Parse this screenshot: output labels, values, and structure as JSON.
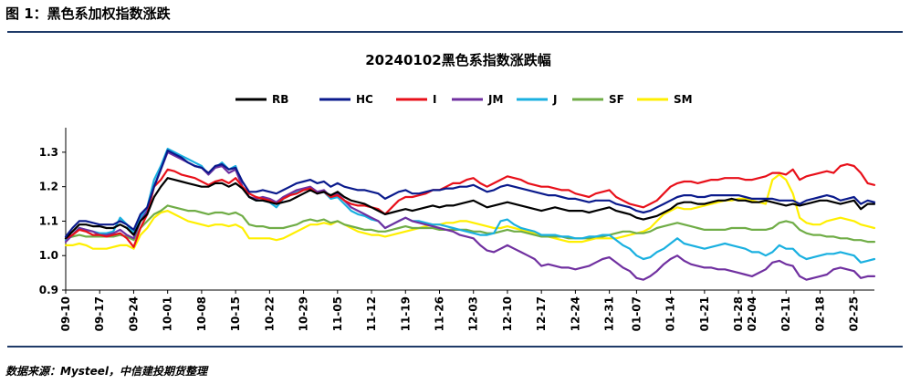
{
  "figure_title": "图 1：黑色系加权指数涨跌",
  "source_note": "数据来源：Mysteel，中信建投期货整理",
  "chart_data": {
    "type": "line",
    "title": "20240102黑色系指数涨跌幅",
    "xlabel": "",
    "ylabel": "",
    "ylim": [
      0.9,
      1.35
    ],
    "yticks": [
      "0.9",
      "1.0",
      "1.1",
      "1.2",
      "1.3"
    ],
    "grid": false,
    "legend_position": "top",
    "x": [
      "09-10",
      "09-11",
      "09-12",
      "09-13",
      "09-14",
      "09-17",
      "09-18",
      "09-19",
      "09-20",
      "09-21",
      "09-24",
      "09-25",
      "09-26",
      "09-27",
      "09-28",
      "10-01",
      "10-02",
      "10-03",
      "10-04",
      "10-05",
      "10-08",
      "10-09",
      "10-10",
      "10-11",
      "10-12",
      "10-15",
      "10-16",
      "10-17",
      "10-18",
      "10-19",
      "10-22",
      "10-23",
      "10-24",
      "10-25",
      "10-26",
      "10-29",
      "10-30",
      "10-31",
      "11-01",
      "11-02",
      "11-05",
      "11-06",
      "11-07",
      "11-08",
      "11-09",
      "11-12",
      "11-13",
      "11-14",
      "11-15",
      "11-16",
      "11-19",
      "11-20",
      "11-21",
      "11-22",
      "11-23",
      "11-26",
      "11-27",
      "11-28",
      "11-29",
      "11-30",
      "12-03",
      "12-04",
      "12-05",
      "12-06",
      "12-07",
      "12-10",
      "12-11",
      "12-12",
      "12-13",
      "12-14",
      "12-17",
      "12-18",
      "12-19",
      "12-20",
      "12-21",
      "12-24",
      "12-25",
      "12-26",
      "12-27",
      "12-28",
      "12-31",
      "01-02",
      "01-03",
      "01-06",
      "01-07",
      "01-08",
      "01-09",
      "01-10",
      "01-13",
      "01-14",
      "01-15",
      "01-16",
      "01-17",
      "01-20",
      "01-21",
      "01-22",
      "01-23",
      "01-24",
      "01-27",
      "01-28",
      "02-03",
      "02-04",
      "02-05",
      "02-06",
      "02-07",
      "02-10",
      "02-11",
      "02-12",
      "02-13",
      "02-14",
      "02-17",
      "02-18",
      "02-19",
      "02-20",
      "02-21",
      "02-24",
      "02-25",
      "02-26",
      "02-27",
      "02-28"
    ],
    "xtick_labels": [
      "09-10",
      "09-17",
      "09-24",
      "10-01",
      "10-08",
      "10-15",
      "10-22",
      "10-29",
      "11-05",
      "11-12",
      "11-19",
      "11-26",
      "12-03",
      "12-10",
      "12-17",
      "12-24",
      "12-31",
      "01-07",
      "01-14",
      "01-21",
      "01-28",
      "02-04",
      "02-11",
      "02-18",
      "02-25"
    ],
    "series": [
      {
        "name": "RB",
        "color": "#000000",
        "values": [
          1.05,
          1.07,
          1.09,
          1.09,
          1.085,
          1.085,
          1.08,
          1.08,
          1.09,
          1.08,
          1.06,
          1.1,
          1.12,
          1.17,
          1.2,
          1.225,
          1.22,
          1.215,
          1.21,
          1.205,
          1.2,
          1.2,
          1.21,
          1.21,
          1.2,
          1.21,
          1.195,
          1.17,
          1.16,
          1.16,
          1.155,
          1.15,
          1.155,
          1.16,
          1.17,
          1.18,
          1.19,
          1.18,
          1.185,
          1.175,
          1.185,
          1.17,
          1.16,
          1.155,
          1.15,
          1.14,
          1.13,
          1.12,
          1.125,
          1.13,
          1.135,
          1.13,
          1.135,
          1.14,
          1.145,
          1.14,
          1.145,
          1.145,
          1.15,
          1.155,
          1.16,
          1.15,
          1.14,
          1.145,
          1.15,
          1.155,
          1.15,
          1.145,
          1.14,
          1.135,
          1.13,
          1.135,
          1.14,
          1.135,
          1.13,
          1.13,
          1.13,
          1.125,
          1.13,
          1.135,
          1.14,
          1.13,
          1.125,
          1.12,
          1.11,
          1.105,
          1.11,
          1.115,
          1.125,
          1.135,
          1.15,
          1.155,
          1.155,
          1.15,
          1.15,
          1.155,
          1.16,
          1.16,
          1.165,
          1.16,
          1.16,
          1.155,
          1.155,
          1.16,
          1.155,
          1.15,
          1.145,
          1.15,
          1.145,
          1.15,
          1.155,
          1.16,
          1.16,
          1.155,
          1.15,
          1.155,
          1.16,
          1.135,
          1.15,
          1.15
        ]
      },
      {
        "name": "HC",
        "color": "#0a1a8c",
        "values": [
          1.055,
          1.08,
          1.1,
          1.1,
          1.095,
          1.09,
          1.09,
          1.09,
          1.1,
          1.09,
          1.075,
          1.12,
          1.14,
          1.2,
          1.25,
          1.305,
          1.295,
          1.285,
          1.27,
          1.26,
          1.255,
          1.24,
          1.26,
          1.265,
          1.25,
          1.255,
          1.215,
          1.185,
          1.185,
          1.19,
          1.185,
          1.18,
          1.19,
          1.2,
          1.21,
          1.215,
          1.22,
          1.21,
          1.215,
          1.2,
          1.21,
          1.2,
          1.195,
          1.19,
          1.19,
          1.185,
          1.18,
          1.165,
          1.175,
          1.185,
          1.19,
          1.18,
          1.18,
          1.185,
          1.19,
          1.19,
          1.195,
          1.195,
          1.2,
          1.2,
          1.205,
          1.195,
          1.185,
          1.19,
          1.2,
          1.205,
          1.2,
          1.195,
          1.19,
          1.185,
          1.18,
          1.175,
          1.175,
          1.17,
          1.165,
          1.165,
          1.16,
          1.155,
          1.16,
          1.16,
          1.16,
          1.15,
          1.145,
          1.14,
          1.13,
          1.125,
          1.13,
          1.14,
          1.15,
          1.16,
          1.17,
          1.175,
          1.175,
          1.17,
          1.17,
          1.175,
          1.175,
          1.175,
          1.175,
          1.175,
          1.17,
          1.165,
          1.165,
          1.165,
          1.165,
          1.16,
          1.16,
          1.16,
          1.15,
          1.16,
          1.165,
          1.17,
          1.175,
          1.17,
          1.16,
          1.165,
          1.17,
          1.15,
          1.16,
          1.155
        ]
      },
      {
        "name": "I",
        "color": "#e8101a",
        "values": [
          1.05,
          1.06,
          1.075,
          1.07,
          1.06,
          1.06,
          1.055,
          1.06,
          1.065,
          1.05,
          1.025,
          1.08,
          1.12,
          1.2,
          1.22,
          1.25,
          1.245,
          1.235,
          1.23,
          1.225,
          1.215,
          1.205,
          1.215,
          1.22,
          1.21,
          1.225,
          1.2,
          1.18,
          1.17,
          1.165,
          1.16,
          1.15,
          1.165,
          1.175,
          1.18,
          1.19,
          1.195,
          1.18,
          1.185,
          1.17,
          1.175,
          1.16,
          1.15,
          1.145,
          1.145,
          1.14,
          1.135,
          1.12,
          1.14,
          1.16,
          1.17,
          1.17,
          1.175,
          1.18,
          1.19,
          1.19,
          1.2,
          1.21,
          1.21,
          1.22,
          1.225,
          1.21,
          1.2,
          1.21,
          1.22,
          1.23,
          1.225,
          1.22,
          1.21,
          1.205,
          1.2,
          1.2,
          1.195,
          1.19,
          1.19,
          1.18,
          1.175,
          1.17,
          1.18,
          1.185,
          1.19,
          1.17,
          1.16,
          1.15,
          1.145,
          1.14,
          1.15,
          1.16,
          1.18,
          1.2,
          1.21,
          1.215,
          1.215,
          1.21,
          1.215,
          1.22,
          1.22,
          1.225,
          1.225,
          1.225,
          1.22,
          1.22,
          1.225,
          1.23,
          1.24,
          1.24,
          1.235,
          1.25,
          1.22,
          1.23,
          1.235,
          1.24,
          1.245,
          1.24,
          1.26,
          1.265,
          1.26,
          1.24,
          1.21,
          1.205
        ]
      },
      {
        "name": "JM",
        "color": "#7030a0",
        "values": [
          1.04,
          1.06,
          1.08,
          1.075,
          1.07,
          1.06,
          1.06,
          1.065,
          1.075,
          1.06,
          1.05,
          1.1,
          1.13,
          1.2,
          1.25,
          1.3,
          1.29,
          1.28,
          1.27,
          1.26,
          1.255,
          1.235,
          1.255,
          1.26,
          1.24,
          1.25,
          1.2,
          1.17,
          1.165,
          1.17,
          1.165,
          1.155,
          1.17,
          1.18,
          1.19,
          1.195,
          1.2,
          1.185,
          1.19,
          1.17,
          1.18,
          1.16,
          1.14,
          1.13,
          1.12,
          1.11,
          1.1,
          1.08,
          1.09,
          1.1,
          1.11,
          1.1,
          1.095,
          1.09,
          1.085,
          1.08,
          1.075,
          1.07,
          1.06,
          1.055,
          1.05,
          1.03,
          1.015,
          1.01,
          1.02,
          1.03,
          1.02,
          1.01,
          1.0,
          0.99,
          0.97,
          0.975,
          0.97,
          0.965,
          0.965,
          0.96,
          0.965,
          0.97,
          0.98,
          0.99,
          0.995,
          0.98,
          0.965,
          0.955,
          0.935,
          0.93,
          0.94,
          0.955,
          0.975,
          0.99,
          1.0,
          0.985,
          0.975,
          0.97,
          0.965,
          0.965,
          0.96,
          0.96,
          0.955,
          0.95,
          0.945,
          0.94,
          0.95,
          0.96,
          0.98,
          0.985,
          0.975,
          0.97,
          0.94,
          0.93,
          0.935,
          0.94,
          0.945,
          0.96,
          0.965,
          0.96,
          0.955,
          0.935,
          0.94,
          0.94
        ]
      },
      {
        "name": "J",
        "color": "#1ab0e0",
        "values": [
          1.045,
          1.06,
          1.08,
          1.075,
          1.07,
          1.065,
          1.065,
          1.07,
          1.11,
          1.09,
          1.065,
          1.11,
          1.14,
          1.22,
          1.26,
          1.31,
          1.3,
          1.29,
          1.28,
          1.27,
          1.26,
          1.235,
          1.255,
          1.27,
          1.25,
          1.26,
          1.2,
          1.17,
          1.16,
          1.16,
          1.155,
          1.14,
          1.165,
          1.175,
          1.185,
          1.19,
          1.195,
          1.18,
          1.185,
          1.165,
          1.17,
          1.15,
          1.13,
          1.12,
          1.115,
          1.105,
          1.1,
          1.08,
          1.09,
          1.1,
          1.11,
          1.1,
          1.1,
          1.095,
          1.09,
          1.09,
          1.085,
          1.08,
          1.075,
          1.07,
          1.065,
          1.06,
          1.06,
          1.065,
          1.1,
          1.105,
          1.09,
          1.08,
          1.075,
          1.07,
          1.06,
          1.06,
          1.06,
          1.055,
          1.055,
          1.05,
          1.05,
          1.055,
          1.055,
          1.06,
          1.06,
          1.045,
          1.03,
          1.02,
          1.0,
          0.99,
          0.995,
          1.01,
          1.02,
          1.035,
          1.05,
          1.035,
          1.03,
          1.025,
          1.02,
          1.025,
          1.03,
          1.035,
          1.03,
          1.025,
          1.02,
          1.01,
          1.01,
          1.0,
          1.01,
          1.03,
          1.02,
          1.02,
          1.0,
          0.99,
          0.995,
          1.0,
          1.005,
          1.005,
          1.01,
          1.005,
          1.0,
          0.98,
          0.985,
          0.99
        ]
      },
      {
        "name": "SF",
        "color": "#70ad47",
        "values": [
          1.05,
          1.055,
          1.06,
          1.055,
          1.055,
          1.055,
          1.055,
          1.055,
          1.06,
          1.055,
          1.045,
          1.08,
          1.1,
          1.12,
          1.13,
          1.145,
          1.14,
          1.135,
          1.13,
          1.13,
          1.125,
          1.12,
          1.125,
          1.125,
          1.12,
          1.125,
          1.115,
          1.09,
          1.085,
          1.085,
          1.08,
          1.08,
          1.08,
          1.085,
          1.09,
          1.1,
          1.105,
          1.1,
          1.105,
          1.095,
          1.1,
          1.09,
          1.085,
          1.08,
          1.075,
          1.075,
          1.07,
          1.07,
          1.075,
          1.08,
          1.085,
          1.08,
          1.08,
          1.08,
          1.08,
          1.075,
          1.075,
          1.075,
          1.075,
          1.075,
          1.07,
          1.07,
          1.065,
          1.065,
          1.07,
          1.075,
          1.07,
          1.07,
          1.065,
          1.06,
          1.055,
          1.055,
          1.055,
          1.055,
          1.05,
          1.05,
          1.05,
          1.05,
          1.055,
          1.055,
          1.06,
          1.065,
          1.07,
          1.07,
          1.065,
          1.065,
          1.07,
          1.08,
          1.085,
          1.09,
          1.095,
          1.09,
          1.085,
          1.08,
          1.075,
          1.075,
          1.075,
          1.075,
          1.08,
          1.08,
          1.08,
          1.075,
          1.075,
          1.075,
          1.08,
          1.095,
          1.1,
          1.095,
          1.075,
          1.065,
          1.06,
          1.06,
          1.055,
          1.055,
          1.05,
          1.05,
          1.045,
          1.045,
          1.04,
          1.04
        ]
      },
      {
        "name": "SM",
        "color": "#ffef00",
        "values": [
          1.03,
          1.03,
          1.035,
          1.03,
          1.02,
          1.02,
          1.02,
          1.025,
          1.03,
          1.03,
          1.02,
          1.06,
          1.08,
          1.11,
          1.125,
          1.13,
          1.12,
          1.11,
          1.1,
          1.095,
          1.09,
          1.085,
          1.09,
          1.09,
          1.085,
          1.09,
          1.08,
          1.05,
          1.05,
          1.05,
          1.05,
          1.045,
          1.05,
          1.06,
          1.07,
          1.08,
          1.09,
          1.09,
          1.095,
          1.09,
          1.1,
          1.09,
          1.08,
          1.07,
          1.065,
          1.06,
          1.06,
          1.055,
          1.06,
          1.065,
          1.07,
          1.075,
          1.08,
          1.085,
          1.09,
          1.09,
          1.095,
          1.095,
          1.1,
          1.1,
          1.095,
          1.09,
          1.085,
          1.08,
          1.08,
          1.085,
          1.08,
          1.075,
          1.07,
          1.065,
          1.06,
          1.055,
          1.05,
          1.045,
          1.04,
          1.04,
          1.04,
          1.045,
          1.05,
          1.05,
          1.05,
          1.05,
          1.055,
          1.06,
          1.065,
          1.07,
          1.08,
          1.1,
          1.12,
          1.13,
          1.14,
          1.135,
          1.135,
          1.14,
          1.145,
          1.15,
          1.155,
          1.16,
          1.16,
          1.165,
          1.165,
          1.16,
          1.155,
          1.15,
          1.22,
          1.235,
          1.22,
          1.18,
          1.11,
          1.095,
          1.09,
          1.09,
          1.1,
          1.105,
          1.11,
          1.105,
          1.1,
          1.09,
          1.085,
          1.08
        ]
      }
    ]
  }
}
